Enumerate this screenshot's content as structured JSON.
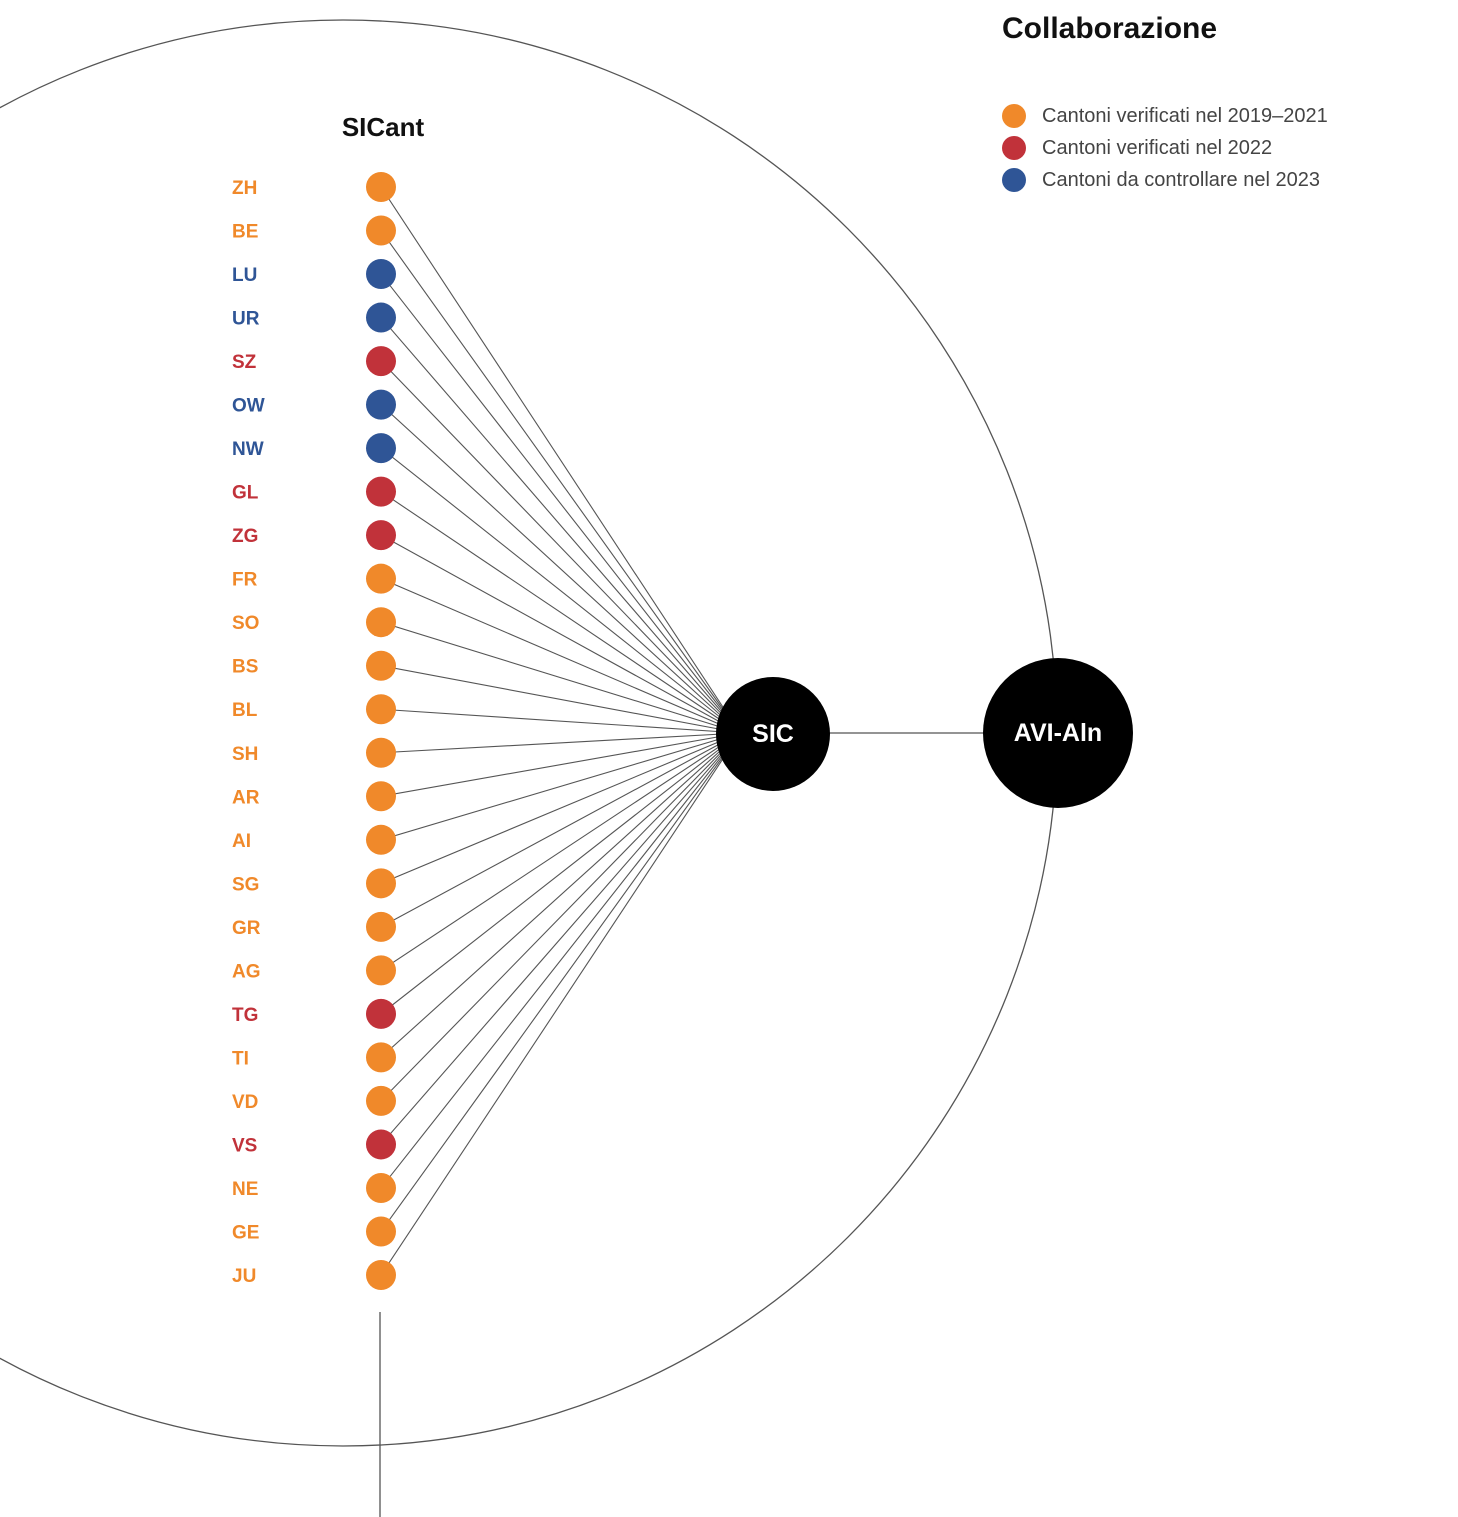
{
  "title": "Collaborazione",
  "legend": [
    {
      "label": "Cantoni verificati nel 2019–2021",
      "color": "#f0892a"
    },
    {
      "label": "Cantoni verificati nel 2022",
      "color": "#c1323a"
    },
    {
      "label": "Cantoni da controllare nel 2023",
      "color": "#2f5596"
    }
  ],
  "group_label": "SICant",
  "hub_sic": "SIC",
  "hub_avi": "AVI-Aln",
  "cantons": [
    {
      "code": "ZH",
      "status": 0
    },
    {
      "code": "BE",
      "status": 0
    },
    {
      "code": "LU",
      "status": 2
    },
    {
      "code": "UR",
      "status": 2
    },
    {
      "code": "SZ",
      "status": 1
    },
    {
      "code": "OW",
      "status": 2
    },
    {
      "code": "NW",
      "status": 2
    },
    {
      "code": "GL",
      "status": 1
    },
    {
      "code": "ZG",
      "status": 1
    },
    {
      "code": "FR",
      "status": 0
    },
    {
      "code": "SO",
      "status": 0
    },
    {
      "code": "BS",
      "status": 0
    },
    {
      "code": "BL",
      "status": 0
    },
    {
      "code": "SH",
      "status": 0
    },
    {
      "code": "AR",
      "status": 0
    },
    {
      "code": "AI",
      "status": 0
    },
    {
      "code": "SG",
      "status": 0
    },
    {
      "code": "GR",
      "status": 0
    },
    {
      "code": "AG",
      "status": 0
    },
    {
      "code": "TG",
      "status": 1
    },
    {
      "code": "TI",
      "status": 0
    },
    {
      "code": "VD",
      "status": 0
    },
    {
      "code": "VS",
      "status": 1
    },
    {
      "code": "NE",
      "status": 0
    },
    {
      "code": "GE",
      "status": 0
    },
    {
      "code": "JU",
      "status": 0
    }
  ]
}
